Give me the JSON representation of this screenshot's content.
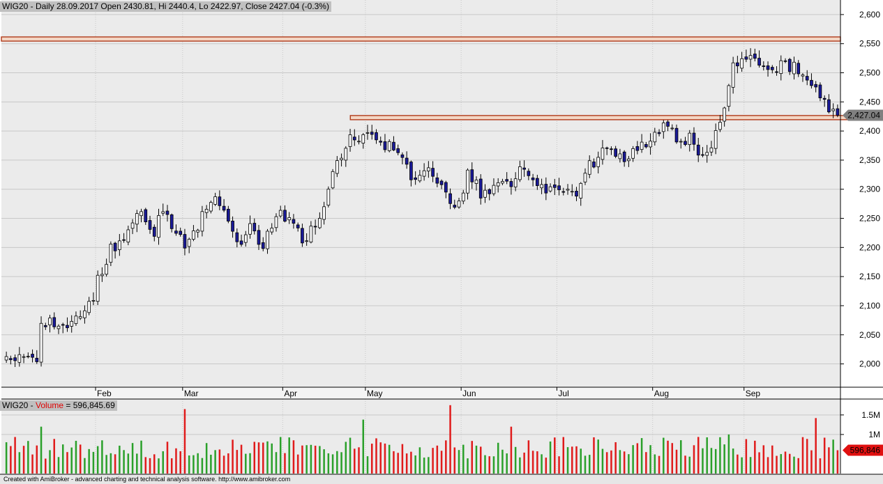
{
  "header": {
    "symbol": "WIG20",
    "text": " - Daily 28.09.2017 Open 2430.81, Hi 2440.4, Lo 2422.97, Close 2427.04 (-0.3%)"
  },
  "volume_header": {
    "symbol": "WIG20",
    "sep": " - ",
    "label": "Volume",
    "value": " = 596,845.69"
  },
  "footer": "Created with AmiBroker - advanced charting and technical analysis software. http://www.amibroker.com",
  "colors": {
    "background": "#ebebeb",
    "grid": "#c8c8c8",
    "up_candle": "#ffffff",
    "down_candle": "#1a1a99",
    "volume_up": "#2aa02a",
    "volume_down": "#e01b1b",
    "resistance_line": "#b03a1a",
    "price_marker": "#808080",
    "volume_marker": "#e01010"
  },
  "chart_data": [
    {
      "type": "candlestick",
      "ylim": [
        1960,
        2625
      ],
      "yticks": [
        "2,600",
        "2,550",
        "2,500",
        "2,450",
        "2,400",
        "2,350",
        "2,300",
        "2,250",
        "2,200",
        "2,150",
        "2,100",
        "2,050",
        "2,000"
      ],
      "ytick_values": [
        2600,
        2550,
        2500,
        2450,
        2400,
        2350,
        2300,
        2250,
        2200,
        2150,
        2100,
        2050,
        2000
      ],
      "months": [
        {
          "label": "Feb",
          "index": 21
        },
        {
          "label": "Mar",
          "index": 41
        },
        {
          "label": "Apr",
          "index": 64
        },
        {
          "label": "May",
          "index": 83
        },
        {
          "label": "Jun",
          "index": 105
        },
        {
          "label": "Jul",
          "index": 127
        },
        {
          "label": "Aug",
          "index": 149
        },
        {
          "label": "Sep",
          "index": 170
        }
      ],
      "last_close_label": "2,427.04",
      "last_close": 2427.04,
      "resistance_levels": [
        {
          "level": 2558,
          "start": 0,
          "span": "full"
        },
        {
          "level": 2423,
          "start": 80,
          "end": 201
        }
      ],
      "close_keys": [
        [
          0,
          2015
        ],
        [
          5,
          2012
        ],
        [
          7,
          2000
        ],
        [
          8,
          2080
        ],
        [
          12,
          2058
        ],
        [
          17,
          2090
        ],
        [
          20,
          2105
        ],
        [
          21,
          2145
        ],
        [
          24,
          2195
        ],
        [
          27,
          2215
        ],
        [
          31,
          2272
        ],
        [
          34,
          2218
        ],
        [
          36,
          2270
        ],
        [
          41,
          2200
        ],
        [
          44,
          2240
        ],
        [
          48,
          2285
        ],
        [
          50,
          2270
        ],
        [
          53,
          2202
        ],
        [
          56,
          2230
        ],
        [
          59,
          2197
        ],
        [
          62,
          2258
        ],
        [
          66,
          2245
        ],
        [
          68,
          2210
        ],
        [
          71,
          2240
        ],
        [
          73,
          2280
        ],
        [
          75,
          2330
        ],
        [
          77,
          2360
        ],
        [
          79,
          2390
        ],
        [
          82,
          2390
        ],
        [
          85,
          2380
        ],
        [
          89,
          2375
        ],
        [
          91,
          2360
        ],
        [
          94,
          2310
        ],
        [
          97,
          2330
        ],
        [
          101,
          2290
        ],
        [
          104,
          2270
        ],
        [
          106,
          2330
        ],
        [
          109,
          2295
        ],
        [
          112,
          2300
        ],
        [
          116,
          2315
        ],
        [
          119,
          2335
        ],
        [
          123,
          2305
        ],
        [
          127,
          2300
        ],
        [
          131,
          2298
        ],
        [
          134,
          2340
        ],
        [
          137,
          2365
        ],
        [
          141,
          2350
        ],
        [
          144,
          2360
        ],
        [
          149,
          2390
        ],
        [
          152,
          2415
        ],
        [
          155,
          2375
        ],
        [
          157,
          2390
        ],
        [
          160,
          2348
        ],
        [
          163,
          2390
        ],
        [
          165,
          2450
        ],
        [
          167,
          2520
        ],
        [
          170,
          2520
        ],
        [
          173,
          2518
        ],
        [
          175,
          2500
        ],
        [
          178,
          2513
        ],
        [
          181,
          2508
        ],
        [
          184,
          2495
        ],
        [
          187,
          2455
        ],
        [
          189,
          2440
        ],
        [
          191,
          2427.04
        ]
      ],
      "volume": {
        "yticks": [
          "1.5M",
          "1M"
        ],
        "ytick_values": [
          1500000,
          1000000
        ],
        "ylim": [
          0,
          1800000
        ],
        "last_label": "596,846",
        "last_value": 596845.69,
        "spikes": [
          {
            "index": 8,
            "value": 1200000
          },
          {
            "index": 41,
            "value": 1650000
          },
          {
            "index": 82,
            "value": 1380000
          },
          {
            "index": 102,
            "value": 1750000
          },
          {
            "index": 116,
            "value": 1200000
          },
          {
            "index": 166,
            "value": 1000000
          },
          {
            "index": 186,
            "value": 1420000
          }
        ]
      }
    }
  ]
}
